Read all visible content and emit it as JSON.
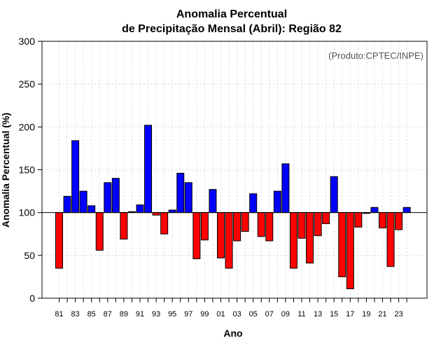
{
  "chart_data": {
    "type": "bar",
    "title_line1": "Anomalia Percentual",
    "title_line2": "de Precipitação Mensal (Abril): Região 82",
    "ylabel": "Anomalia Percentual (%)",
    "xlabel": "Ano",
    "annotation": "(Produto:CPTEC/INPE)",
    "ylim": [
      0,
      300
    ],
    "yticks": [
      0,
      50,
      100,
      150,
      200,
      250,
      300
    ],
    "baseline": 100,
    "colors": {
      "above": "#0000ff",
      "below": "#ff0000"
    },
    "categories": [
      "81",
      "82",
      "83",
      "84",
      "85",
      "86",
      "87",
      "88",
      "89",
      "90",
      "91",
      "92",
      "93",
      "94",
      "95",
      "96",
      "97",
      "98",
      "99",
      "00",
      "01",
      "02",
      "03",
      "04",
      "05",
      "06",
      "07",
      "08",
      "09",
      "10",
      "11",
      "12",
      "13",
      "14",
      "15",
      "16",
      "17",
      "18",
      "19",
      "20",
      "21",
      "22",
      "23",
      "24"
    ],
    "tick_labels": [
      "81",
      "83",
      "85",
      "87",
      "89",
      "91",
      "93",
      "95",
      "97",
      "99",
      "01",
      "03",
      "05",
      "07",
      "09",
      "11",
      "13",
      "15",
      "17",
      "19",
      "21",
      "23"
    ],
    "values": [
      35,
      119,
      184,
      125,
      108,
      56,
      135,
      140,
      69,
      101,
      109,
      202,
      97,
      75,
      103,
      146,
      135,
      46,
      68,
      127,
      47,
      35,
      67,
      78,
      122,
      72,
      67,
      125,
      157,
      35,
      70,
      41,
      73,
      87,
      142,
      25,
      11,
      83,
      99,
      106,
      82,
      37,
      80,
      106
    ]
  }
}
